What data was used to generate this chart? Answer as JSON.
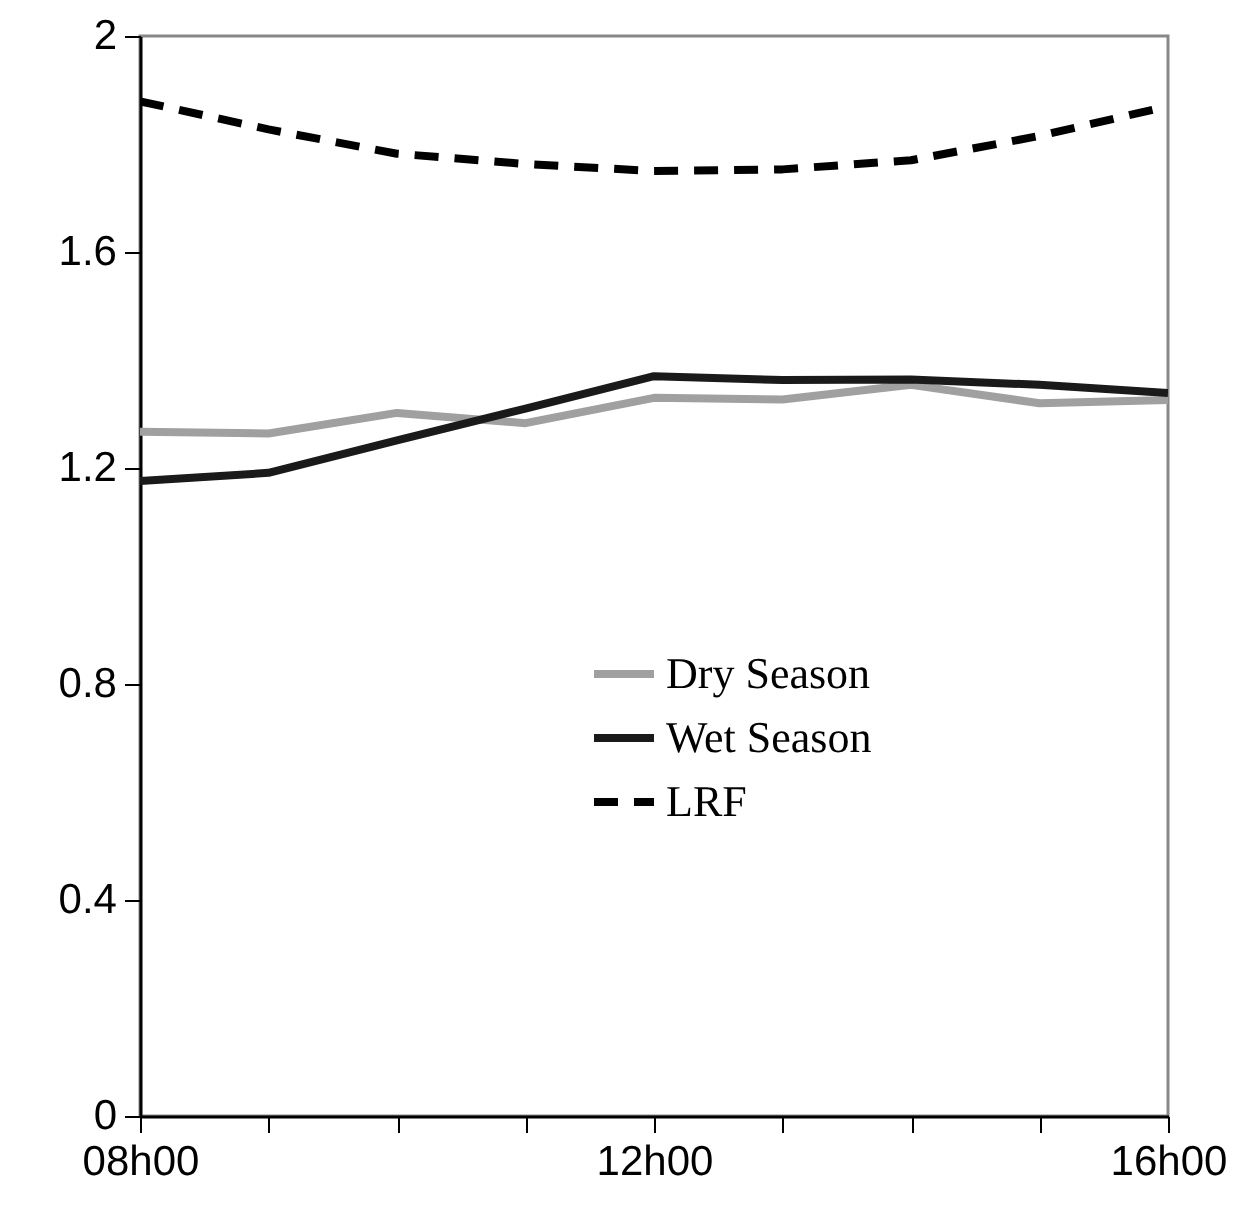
{
  "chart_data": {
    "type": "line",
    "categories": [
      "08h00",
      null,
      null,
      null,
      "12h00",
      null,
      null,
      null,
      "16h00"
    ],
    "ylim": [
      0,
      2
    ],
    "yticks": [
      0,
      0.4,
      0.8,
      1.2,
      1.6,
      2
    ],
    "legend": "center",
    "series": [
      {
        "name": "Dry Season",
        "color": "#a0a0a0",
        "line_style": "solid",
        "values": [
          1.267,
          1.264,
          1.302,
          1.283,
          1.33,
          1.327,
          1.354,
          1.32,
          1.326
        ]
      },
      {
        "name": "Wet Season",
        "color": "#1a1a1a",
        "line_style": "solid",
        "values": [
          1.176,
          1.191,
          1.251,
          1.31,
          1.37,
          1.363,
          1.364,
          1.354,
          1.339
        ]
      },
      {
        "name": "LRF",
        "color": "#000000",
        "line_style": "dashed",
        "values": [
          1.879,
          1.827,
          1.782,
          1.763,
          1.75,
          1.753,
          1.77,
          1.815,
          1.87
        ]
      }
    ]
  }
}
